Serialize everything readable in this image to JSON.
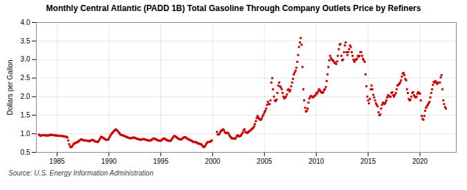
{
  "chart_data": {
    "type": "scatter",
    "title": "Monthly Central Atlantic (PADD 1B) Total Gasoline Through Company Outlets Price by Refiners",
    "ylabel": "Dollars per Gallon",
    "caption": "Source: U.S. Energy Information Administration",
    "color": "#CC0000",
    "marker": "square",
    "grid": true,
    "xlim": [
      1983.0,
      2023.5
    ],
    "xticks": [
      1985,
      1990,
      1995,
      2000,
      2005,
      2010,
      2015,
      2020
    ],
    "ylim": [
      0.5,
      4.0
    ],
    "yticks": [
      0.5,
      {
        "value": 1.0,
        "label": "1.0"
      },
      1.5,
      {
        "value": 2.0,
        "label": "2.0"
      },
      2.5,
      {
        "value": 3.0,
        "label": "3.0"
      },
      3.5,
      {
        "value": 4.0,
        "label": "4.0"
      }
    ],
    "x": [
      1983.25,
      1983.33,
      1983.42,
      1983.5,
      1983.58,
      1983.67,
      1983.75,
      1983.83,
      1983.92,
      1984.0,
      1984.08,
      1984.17,
      1984.25,
      1984.33,
      1984.42,
      1984.5,
      1984.58,
      1984.67,
      1984.75,
      1984.83,
      1984.92,
      1985.0,
      1985.08,
      1985.17,
      1985.25,
      1985.33,
      1985.42,
      1985.5,
      1985.58,
      1985.67,
      1985.75,
      1985.83,
      1985.92,
      1986.0,
      1986.08,
      1986.17,
      1986.25,
      1986.33,
      1986.42,
      1986.5,
      1986.58,
      1986.67,
      1986.75,
      1986.83,
      1986.92,
      1987.0,
      1987.08,
      1987.17,
      1987.25,
      1987.33,
      1987.42,
      1987.5,
      1987.58,
      1987.67,
      1987.75,
      1987.83,
      1987.92,
      1988.0,
      1988.08,
      1988.17,
      1988.25,
      1988.33,
      1988.42,
      1988.5,
      1988.58,
      1988.67,
      1988.75,
      1988.83,
      1988.92,
      1989.0,
      1989.08,
      1989.17,
      1989.25,
      1989.33,
      1989.42,
      1989.5,
      1989.58,
      1989.67,
      1989.75,
      1989.83,
      1989.92,
      1990.0,
      1990.08,
      1990.17,
      1990.25,
      1990.33,
      1990.42,
      1990.5,
      1990.58,
      1990.67,
      1990.75,
      1990.83,
      1990.92,
      1991.0,
      1991.08,
      1991.17,
      1991.25,
      1991.33,
      1991.42,
      1991.5,
      1991.58,
      1991.67,
      1991.75,
      1991.83,
      1991.92,
      1992.0,
      1992.08,
      1992.17,
      1992.25,
      1992.33,
      1992.42,
      1992.5,
      1992.58,
      1992.67,
      1992.75,
      1992.83,
      1992.92,
      1993.0,
      1993.08,
      1993.17,
      1993.25,
      1993.33,
      1993.42,
      1993.5,
      1993.58,
      1993.67,
      1993.75,
      1993.83,
      1993.92,
      1994.0,
      1994.08,
      1994.17,
      1994.25,
      1994.33,
      1994.42,
      1994.5,
      1994.58,
      1994.67,
      1994.75,
      1994.83,
      1994.92,
      1995.0,
      1995.08,
      1995.17,
      1995.25,
      1995.33,
      1995.42,
      1995.5,
      1995.58,
      1995.67,
      1995.75,
      1995.83,
      1995.92,
      1996.0,
      1996.08,
      1996.17,
      1996.25,
      1996.33,
      1996.42,
      1996.5,
      1996.58,
      1996.67,
      1996.75,
      1996.83,
      1996.92,
      1997.0,
      1997.08,
      1997.17,
      1997.25,
      1997.33,
      1997.42,
      1997.5,
      1997.58,
      1997.67,
      1997.75,
      1997.83,
      1997.92,
      1998.0,
      1998.08,
      1998.17,
      1998.25,
      1998.33,
      1998.42,
      1998.5,
      1998.58,
      1998.67,
      1998.75,
      1998.83,
      1998.92,
      1999.0,
      1999.08,
      1999.17,
      1999.25,
      1999.33,
      1999.42,
      1999.5,
      1999.58,
      1999.67,
      1999.75,
      1999.83,
      1999.92,
      2000.42,
      2000.5,
      2000.58,
      2000.67,
      2000.75,
      2000.83,
      2000.92,
      2001.0,
      2001.08,
      2001.17,
      2001.25,
      2001.33,
      2001.42,
      2001.5,
      2001.58,
      2001.67,
      2001.75,
      2001.83,
      2001.92,
      2002.0,
      2002.08,
      2002.17,
      2002.25,
      2002.33,
      2002.42,
      2002.5,
      2002.58,
      2002.67,
      2002.75,
      2002.83,
      2002.92,
      2003.0,
      2003.08,
      2003.17,
      2003.25,
      2003.33,
      2003.42,
      2003.5,
      2003.58,
      2003.67,
      2003.75,
      2003.83,
      2003.92,
      2004.0,
      2004.08,
      2004.17,
      2004.25,
      2004.33,
      2004.42,
      2004.5,
      2004.58,
      2004.67,
      2004.75,
      2004.83,
      2004.92,
      2005.0,
      2005.08,
      2005.17,
      2005.25,
      2005.33,
      2005.42,
      2005.5,
      2005.58,
      2005.67,
      2005.75,
      2005.83,
      2005.92,
      2006.0,
      2006.08,
      2006.17,
      2006.25,
      2006.33,
      2006.42,
      2006.5,
      2006.58,
      2006.67,
      2006.75,
      2006.83,
      2006.92,
      2007.0,
      2007.08,
      2007.17,
      2007.25,
      2007.33,
      2007.42,
      2007.5,
      2007.58,
      2007.67,
      2007.75,
      2007.83,
      2007.92,
      2008.0,
      2008.08,
      2008.17,
      2008.25,
      2008.33,
      2008.42,
      2008.5,
      2008.58,
      2008.67,
      2008.75,
      2008.83,
      2008.92,
      2009.0,
      2009.08,
      2009.17,
      2009.25,
      2009.33,
      2009.42,
      2009.5,
      2009.58,
      2009.67,
      2009.75,
      2009.83,
      2009.92,
      2010.0,
      2010.08,
      2010.17,
      2010.25,
      2010.33,
      2010.42,
      2010.5,
      2010.58,
      2010.67,
      2010.75,
      2010.83,
      2010.92,
      2011.0,
      2011.08,
      2011.17,
      2011.25,
      2011.33,
      2011.42,
      2011.5,
      2011.58,
      2011.67,
      2011.75,
      2011.83,
      2011.92,
      2012.0,
      2012.08,
      2012.17,
      2012.25,
      2012.33,
      2012.42,
      2012.5,
      2012.58,
      2012.67,
      2012.75,
      2012.83,
      2012.92,
      2013.0,
      2013.08,
      2013.17,
      2013.25,
      2013.33,
      2013.42,
      2013.5,
      2013.58,
      2013.67,
      2013.75,
      2013.83,
      2013.92,
      2014.0,
      2014.08,
      2014.17,
      2014.25,
      2014.33,
      2014.42,
      2014.5,
      2014.58,
      2014.67,
      2014.75,
      2014.83,
      2014.92,
      2015.0,
      2015.08,
      2015.17,
      2015.25,
      2015.33,
      2015.42,
      2015.5,
      2015.58,
      2015.67,
      2015.75,
      2015.83,
      2015.92,
      2016.0,
      2016.08,
      2016.17,
      2016.25,
      2016.33,
      2016.42,
      2016.5,
      2016.58,
      2016.67,
      2016.75,
      2016.83,
      2016.92,
      2017.0,
      2017.08,
      2017.17,
      2017.25,
      2017.33,
      2017.42,
      2017.5,
      2017.58,
      2017.67,
      2017.75,
      2017.83,
      2017.92,
      2018.0,
      2018.08,
      2018.17,
      2018.25,
      2018.33,
      2018.42,
      2018.5,
      2018.58,
      2018.67,
      2018.75,
      2018.83,
      2018.92,
      2019.0,
      2019.08,
      2019.17,
      2019.25,
      2019.33,
      2019.42,
      2019.5,
      2019.58,
      2019.67,
      2019.75,
      2019.83,
      2019.92,
      2020.0,
      2020.08,
      2020.17,
      2020.25,
      2020.33,
      2020.42,
      2020.5,
      2020.58,
      2020.67,
      2020.75,
      2020.83,
      2020.92,
      2021.0,
      2021.08,
      2021.17,
      2021.25,
      2021.33,
      2021.42,
      2021.5,
      2021.58,
      2021.67,
      2021.75,
      2021.83,
      2021.92,
      2022.0,
      2022.08,
      2022.17,
      2022.25,
      2022.33,
      2022.42,
      2022.5
    ],
    "values": [
      0.979,
      0.959,
      0.942,
      0.955,
      0.962,
      0.965,
      0.963,
      0.96,
      0.957,
      0.955,
      0.952,
      0.953,
      0.965,
      0.972,
      0.973,
      0.969,
      0.966,
      0.963,
      0.96,
      0.957,
      0.955,
      0.952,
      0.947,
      0.942,
      0.945,
      0.948,
      0.943,
      0.938,
      0.935,
      0.93,
      0.927,
      0.921,
      0.915,
      0.9,
      0.82,
      0.72,
      0.66,
      0.64,
      0.65,
      0.68,
      0.72,
      0.74,
      0.75,
      0.76,
      0.77,
      0.785,
      0.8,
      0.82,
      0.84,
      0.85,
      0.84,
      0.83,
      0.825,
      0.82,
      0.82,
      0.818,
      0.815,
      0.808,
      0.8,
      0.805,
      0.82,
      0.835,
      0.835,
      0.825,
      0.81,
      0.795,
      0.79,
      0.785,
      0.78,
      0.8,
      0.84,
      0.88,
      0.92,
      0.91,
      0.895,
      0.88,
      0.865,
      0.85,
      0.84,
      0.835,
      0.84,
      0.88,
      0.92,
      0.96,
      1.0,
      1.02,
      1.05,
      1.08,
      1.1,
      1.12,
      1.1,
      1.08,
      1.05,
      1.02,
      0.99,
      0.97,
      0.965,
      0.96,
      0.95,
      0.94,
      0.93,
      0.92,
      0.91,
      0.9,
      0.89,
      0.885,
      0.882,
      0.88,
      0.89,
      0.9,
      0.9,
      0.89,
      0.88,
      0.87,
      0.862,
      0.855,
      0.848,
      0.842,
      0.84,
      0.845,
      0.855,
      0.86,
      0.855,
      0.845,
      0.838,
      0.832,
      0.825,
      0.82,
      0.818,
      0.82,
      0.83,
      0.845,
      0.865,
      0.875,
      0.87,
      0.855,
      0.84,
      0.83,
      0.822,
      0.815,
      0.81,
      0.815,
      0.828,
      0.848,
      0.87,
      0.875,
      0.862,
      0.845,
      0.83,
      0.82,
      0.815,
      0.81,
      0.808,
      0.828,
      0.858,
      0.895,
      0.93,
      0.94,
      0.93,
      0.91,
      0.89,
      0.875,
      0.862,
      0.85,
      0.845,
      0.852,
      0.87,
      0.89,
      0.905,
      0.91,
      0.9,
      0.882,
      0.865,
      0.852,
      0.84,
      0.83,
      0.82,
      0.808,
      0.79,
      0.775,
      0.78,
      0.782,
      0.77,
      0.755,
      0.742,
      0.735,
      0.73,
      0.722,
      0.712,
      0.68,
      0.66,
      0.64,
      0.66,
      0.7,
      0.74,
      0.77,
      0.78,
      0.78,
      0.785,
      0.8,
      0.82,
      1.05,
      0.98,
      0.98,
      1.0,
      1.05,
      1.08,
      1.1,
      1.12,
      1.1,
      1.05,
      1.02,
      1.02,
      1.03,
      1.02,
      0.98,
      0.94,
      0.91,
      0.88,
      0.87,
      0.88,
      0.87,
      0.865,
      0.89,
      0.94,
      0.96,
      0.94,
      0.93,
      0.94,
      0.96,
      1.0,
      1.04,
      1.1,
      1.12,
      1.05,
      1.04,
      1.02,
      1.04,
      1.06,
      1.08,
      1.1,
      1.12,
      1.14,
      1.16,
      1.2,
      1.26,
      1.34,
      1.42,
      1.48,
      1.44,
      1.4,
      1.38,
      1.38,
      1.42,
      1.48,
      1.52,
      1.58,
      1.62,
      1.68,
      1.78,
      1.86,
      1.8,
      1.8,
      1.9,
      2.38,
      2.5,
      2.2,
      2.0,
      1.9,
      1.88,
      1.92,
      2.1,
      2.3,
      2.38,
      2.28,
      2.25,
      2.2,
      2.1,
      2.0,
      1.95,
      1.98,
      2.0,
      2.06,
      2.18,
      2.2,
      2.14,
      2.18,
      2.28,
      2.38,
      2.48,
      2.6,
      2.65,
      2.7,
      2.78,
      2.94,
      3.12,
      3.34,
      3.46,
      3.58,
      3.4,
      2.8,
      2.2,
      1.9,
      1.7,
      1.6,
      1.62,
      1.68,
      1.84,
      1.95,
      2.0,
      2.02,
      2.0,
      1.98,
      2.0,
      2.02,
      2.04,
      2.1,
      2.08,
      2.14,
      2.2,
      2.18,
      2.14,
      2.12,
      2.1,
      2.12,
      2.18,
      2.2,
      2.26,
      2.42,
      2.6,
      2.8,
      2.98,
      3.1,
      3.04,
      3.0,
      2.98,
      2.96,
      2.92,
      2.9,
      2.88,
      2.95,
      3.1,
      3.28,
      3.4,
      3.42,
      3.1,
      2.98,
      3.0,
      3.2,
      3.38,
      3.46,
      3.2,
      3.12,
      3.2,
      3.28,
      3.38,
      3.34,
      3.2,
      3.1,
      3.0,
      2.94,
      2.98,
      3.0,
      3.02,
      3.1,
      3.08,
      3.1,
      3.2,
      3.2,
      3.1,
      3.02,
      2.98,
      2.94,
      2.6,
      2.28,
      2.0,
      1.9,
      1.82,
      1.94,
      2.2,
      2.3,
      2.2,
      2.05,
      1.98,
      1.9,
      1.82,
      1.78,
      1.74,
      1.58,
      1.5,
      1.52,
      1.68,
      1.78,
      1.84,
      1.82,
      1.8,
      1.84,
      1.9,
      1.98,
      2.04,
      2.02,
      2.0,
      2.0,
      2.1,
      2.12,
      2.04,
      2.0,
      2.05,
      2.1,
      2.2,
      2.3,
      2.32,
      2.34,
      2.38,
      2.44,
      2.54,
      2.62,
      2.64,
      2.58,
      2.48,
      2.44,
      2.2,
      2.1,
      1.94,
      1.9,
      1.92,
      2.0,
      2.1,
      2.12,
      2.04,
      2.0,
      1.98,
      2.0,
      2.08,
      2.12,
      2.1,
      2.08,
      1.9,
      1.48,
      1.4,
      1.38,
      1.48,
      1.62,
      1.7,
      1.74,
      1.78,
      1.82,
      1.86,
      1.98,
      2.1,
      2.2,
      2.32,
      2.4,
      2.38,
      2.42,
      2.38,
      2.34,
      2.38,
      2.38,
      2.38,
      2.52,
      2.58,
      2.2,
      1.9,
      1.8,
      1.72,
      1.68
    ]
  }
}
